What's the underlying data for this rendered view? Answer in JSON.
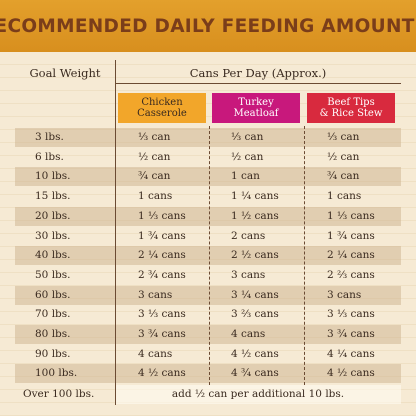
{
  "banner": {
    "title": "RECOMMENDED DAILY FEEDING AMOUNTS:"
  },
  "table": {
    "goal_weight_header": "Goal Weight",
    "cans_header": "Cans Per Day (Approx.)",
    "columns": [
      {
        "line1": "Chicken",
        "line2": "Casserole",
        "color": "#f2a62a"
      },
      {
        "line1": "Turkey",
        "line2": "Meatloaf",
        "color": "#c8187c"
      },
      {
        "line1": "Beef Tips",
        "line2": "& Rice Stew",
        "color": "#d82a3e"
      }
    ],
    "rows": [
      {
        "weight": "3 lbs.",
        "chicken": "⅓ can",
        "turkey": "⅓ can",
        "beef": "⅓ can"
      },
      {
        "weight": "6 lbs.",
        "chicken": "½ can",
        "turkey": "½ can",
        "beef": "½ can"
      },
      {
        "weight": "10 lbs.",
        "chicken": "¾ can",
        "turkey": "1 can",
        "beef": "¾ can"
      },
      {
        "weight": "15 lbs.",
        "chicken": "1 cans",
        "turkey": "1 ¼ cans",
        "beef": "1 cans"
      },
      {
        "weight": "20 lbs.",
        "chicken": "1 ⅓ cans",
        "turkey": "1 ½ cans",
        "beef": "1 ⅓ cans"
      },
      {
        "weight": "30 lbs.",
        "chicken": "1 ¾ cans",
        "turkey": "2 cans",
        "beef": "1 ¾ cans"
      },
      {
        "weight": "40 lbs.",
        "chicken": "2 ¼ cans",
        "turkey": "2 ½ cans",
        "beef": "2 ¼ cans"
      },
      {
        "weight": "50 lbs.",
        "chicken": "2 ¾ cans",
        "turkey": "3 cans",
        "beef": "2 ⅔ cans"
      },
      {
        "weight": "60 lbs.",
        "chicken": "3 cans",
        "turkey": "3 ¼ cans",
        "beef": "3 cans"
      },
      {
        "weight": "70 lbs.",
        "chicken": "3 ⅓ cans",
        "turkey": "3 ⅔ cans",
        "beef": "3 ⅓ cans"
      },
      {
        "weight": "80 lbs.",
        "chicken": "3 ¾ cans",
        "turkey": "4 cans",
        "beef": "3 ¾ cans"
      },
      {
        "weight": "90 lbs.",
        "chicken": "4 cans",
        "turkey": "4 ½ cans",
        "beef": "4 ¼ cans"
      },
      {
        "weight": "100 lbs.",
        "chicken": "4 ½ cans",
        "turkey": "4 ¾ cans",
        "beef": "4 ½ cans"
      }
    ],
    "footer": {
      "weight": "Over 100 lbs.",
      "note": "add ½ can per additional 10 lbs."
    }
  }
}
